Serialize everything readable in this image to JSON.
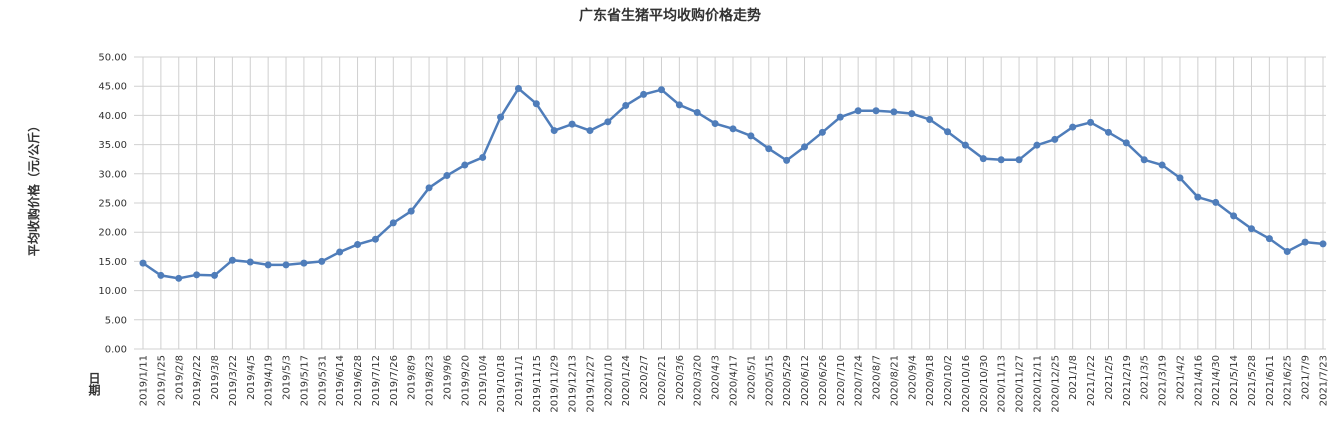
{
  "chart_data": {
    "type": "line",
    "title": "广东省生猪平均收购价格走势",
    "y_label": "平均收购价格（元/公斤）",
    "x_label": "日期",
    "categories": [
      "2019/1/11",
      "2019/1/25",
      "2019/2/8",
      "2019/2/22",
      "2019/3/8",
      "2019/3/22",
      "2019/4/5",
      "2019/4/19",
      "2019/5/3",
      "2019/5/17",
      "2019/5/31",
      "2019/6/14",
      "2019/6/28",
      "2019/7/12",
      "2019/7/26",
      "2019/8/9",
      "2019/8/23",
      "2019/9/6",
      "2019/9/20",
      "2019/10/4",
      "2019/10/18",
      "2019/11/1",
      "2019/11/15",
      "2019/11/29",
      "2019/12/13",
      "2019/12/27",
      "2020/1/10",
      "2020/1/24",
      "2020/2/7",
      "2020/2/21",
      "2020/3/6",
      "2020/3/20",
      "2020/4/3",
      "2020/4/17",
      "2020/5/1",
      "2020/5/15",
      "2020/5/29",
      "2020/6/12",
      "2020/6/26",
      "2020/7/10",
      "2020/7/24",
      "2020/8/7",
      "2020/8/21",
      "2020/9/4",
      "2020/9/18",
      "2020/10/2",
      "2020/10/16",
      "2020/10/30",
      "2020/11/13",
      "2020/11/27",
      "2020/12/11",
      "2020/12/25",
      "2021/1/8",
      "2021/1/22",
      "2021/2/5",
      "2021/2/19",
      "2021/3/5",
      "2021/3/19",
      "2021/4/2",
      "2021/4/16",
      "2021/4/30",
      "2021/5/14",
      "2021/5/28",
      "2021/6/11",
      "2021/6/25",
      "2021/7/9",
      "2021/7/23"
    ],
    "values": [
      14.7,
      12.6,
      12.1,
      12.7,
      12.6,
      15.2,
      14.9,
      14.4,
      14.4,
      14.7,
      15.0,
      16.6,
      17.9,
      18.8,
      21.6,
      23.6,
      27.6,
      29.7,
      31.5,
      32.8,
      39.7,
      44.6,
      42.0,
      37.4,
      38.5,
      37.4,
      38.9,
      41.7,
      43.6,
      44.4,
      41.8,
      40.5,
      38.6,
      37.7,
      36.5,
      34.3,
      32.3,
      34.6,
      37.1,
      39.7,
      40.8,
      40.8,
      40.6,
      40.3,
      39.3,
      37.2,
      34.9,
      32.6,
      32.4,
      32.4,
      34.9,
      35.9,
      38.0,
      38.8,
      37.1,
      35.3,
      32.4,
      31.5,
      29.3,
      26.0,
      25.1,
      22.8,
      20.6,
      18.9,
      16.7,
      18.3,
      18.0
    ],
    "color": "#4f7dba",
    "ylim": [
      0,
      50
    ],
    "yticks": [
      {
        "value": 0,
        "label": "0.00"
      },
      {
        "value": 5,
        "label": "5.00"
      },
      {
        "value": 10,
        "label": "10.00"
      },
      {
        "value": 15,
        "label": "15.00"
      },
      {
        "value": 20,
        "label": "20.00"
      },
      {
        "value": 25,
        "label": "25.00"
      },
      {
        "value": 30,
        "label": "30.00"
      },
      {
        "value": 35,
        "label": "35.00"
      },
      {
        "value": 40,
        "label": "40.00"
      },
      {
        "value": 45,
        "label": "45.00"
      },
      {
        "value": 50,
        "label": "50.00"
      }
    ],
    "grid": true
  }
}
